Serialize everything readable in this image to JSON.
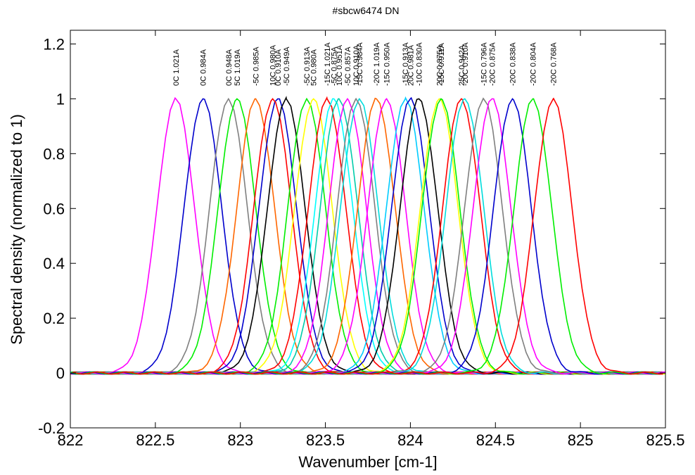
{
  "chart_data": {
    "type": "line",
    "title": "#sbcw6474 DN",
    "xlabel": "Wavenumber [cm-1]",
    "ylabel": "Spectral density (normalized to 1)",
    "xlim": [
      822,
      825.5
    ],
    "ylim": [
      -0.2,
      1.25
    ],
    "xticks": [
      822,
      822.5,
      823,
      823.5,
      824,
      824.5,
      825,
      825.5
    ],
    "xtick_labels": [
      "822",
      "822.5",
      "823",
      "823.5",
      "824",
      "824.5",
      "825",
      "825.5"
    ],
    "yticks": [
      -0.2,
      0,
      0.2,
      0.4,
      0.6,
      0.8,
      1,
      1.2
    ],
    "ytick_labels": [
      "-0.2",
      "0",
      "0.2",
      "0.4",
      "0.6",
      "0.8",
      "1",
      "1.2"
    ],
    "grid": false,
    "legend": "none",
    "peak_width_cm1": 0.26,
    "series": [
      {
        "label": "0C 1.021A",
        "peak_x": 822.62,
        "color": "#ff00ff"
      },
      {
        "label": "0C 0.984A",
        "peak_x": 822.78,
        "color": "#0000cc"
      },
      {
        "label": "0C 0.948A",
        "peak_x": 822.93,
        "color": "#7f7f7f"
      },
      {
        "label": "5C 1.019A",
        "peak_x": 822.98,
        "color": "#00ee00"
      },
      {
        "label": "-5C 0.985A",
        "peak_x": 823.09,
        "color": "#ff6600"
      },
      {
        "label": "0C 0.910A",
        "peak_x": 823.22,
        "color": "#0000cc"
      },
      {
        "label": "10C 0.980A",
        "peak_x": 823.19,
        "color": "#ff0000"
      },
      {
        "label": "-5C 0.949A",
        "peak_x": 823.27,
        "color": "#000000"
      },
      {
        "label": "-5C 0.913A",
        "peak_x": 823.39,
        "color": "#00ee00"
      },
      {
        "label": "5C 0.980A",
        "peak_x": 823.43,
        "color": "#ffff00"
      },
      {
        "label": "-15C 1.021A",
        "peak_x": 823.51,
        "color": "#ff0000"
      },
      {
        "label": "-5C 0.875A",
        "peak_x": 823.55,
        "color": "#00ffff"
      },
      {
        "label": "10C 0.951A",
        "peak_x": 823.58,
        "color": "#00ccaa"
      },
      {
        "label": "-5C 0.857A",
        "peak_x": 823.63,
        "color": "#ff00ff"
      },
      {
        "label": "-15C 0.984A",
        "peak_x": 823.7,
        "color": "#00dddd"
      },
      {
        "label": "10C 0.910A",
        "peak_x": 823.68,
        "color": "#7f7f7f"
      },
      {
        "label": "-20C 1.019A",
        "peak_x": 823.8,
        "color": "#ff6600"
      },
      {
        "label": "-15C 0.950A",
        "peak_x": 823.86,
        "color": "#ff00ff"
      },
      {
        "label": "-15C 0.913A",
        "peak_x": 823.97,
        "color": "#00ccff"
      },
      {
        "label": "20C 0.981A",
        "peak_x": 824.0,
        "color": "#0000cc"
      },
      {
        "label": "-10C 0.830A",
        "peak_x": 824.05,
        "color": "#000000"
      },
      {
        "label": "20C 0.875A",
        "peak_x": 824.17,
        "color": "#ffff00"
      },
      {
        "label": "-15C 0.911A",
        "peak_x": 824.18,
        "color": "#00ee00"
      },
      {
        "label": "25C 0.942A",
        "peak_x": 824.3,
        "color": "#ff0000"
      },
      {
        "label": "-20C 0.910A",
        "peak_x": 824.32,
        "color": "#00dddd"
      },
      {
        "label": "-15C 0.796A",
        "peak_x": 824.43,
        "color": "#7f7f7f"
      },
      {
        "label": "-20C 0.875A",
        "peak_x": 824.48,
        "color": "#ff00ff"
      },
      {
        "label": "-20C 0.838A",
        "peak_x": 824.6,
        "color": "#0000cc"
      },
      {
        "label": "-20C 0.804A",
        "peak_x": 824.72,
        "color": "#00ee00"
      },
      {
        "label": "-20C 0.768A",
        "peak_x": 824.84,
        "color": "#ff0000"
      }
    ]
  }
}
